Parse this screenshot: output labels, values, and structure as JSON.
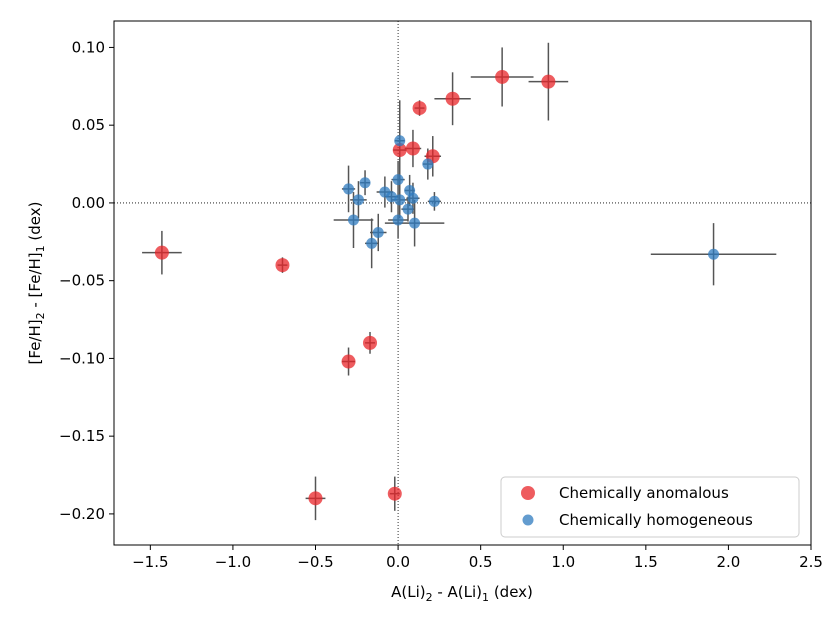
{
  "chart_data": {
    "type": "scatter",
    "xlabel_parts": [
      "A(Li)",
      "2",
      " - A(Li)",
      "1",
      " (dex)"
    ],
    "ylabel_parts": [
      "[Fe/H]",
      "2",
      " - [Fe/H]",
      "1",
      " (dex)"
    ],
    "xlim": [
      -1.72,
      2.5
    ],
    "ylim": [
      -0.22,
      0.117
    ],
    "xticks": [
      -1.5,
      -1.0,
      -0.5,
      0.0,
      0.5,
      1.0,
      1.5,
      2.0,
      2.5
    ],
    "xtick_labels": [
      "−1.5",
      "−1.0",
      "−0.5",
      "0.0",
      "0.5",
      "1.0",
      "1.5",
      "2.0",
      "2.5"
    ],
    "yticks": [
      0.1,
      0.05,
      0.0,
      -0.05,
      -0.1,
      -0.15,
      -0.2
    ],
    "ytick_labels": [
      "0.10",
      "0.05",
      "0.00",
      "−0.05",
      "−0.10",
      "−0.15",
      "−0.20"
    ],
    "reference_lines": {
      "x": 0,
      "y": 0
    },
    "legend": {
      "position": "bottom-right"
    },
    "series": [
      {
        "name": "Chemically anomalous",
        "color": "#e8262a",
        "points": [
          {
            "x": -1.43,
            "y": -0.032,
            "xerr": 0.12,
            "yerr": 0.014
          },
          {
            "x": -0.7,
            "y": -0.04,
            "xerr": 0.03,
            "yerr": 0.005
          },
          {
            "x": -0.3,
            "y": -0.102,
            "xerr": 0.04,
            "yerr": 0.009
          },
          {
            "x": -0.17,
            "y": -0.09,
            "xerr": 0.03,
            "yerr": 0.007
          },
          {
            "x": -0.5,
            "y": -0.19,
            "xerr": 0.06,
            "yerr": 0.014
          },
          {
            "x": -0.02,
            "y": -0.187,
            "xerr": 0.03,
            "yerr": 0.011
          },
          {
            "x": 0.13,
            "y": 0.061,
            "xerr": 0.03,
            "yerr": 0.005
          },
          {
            "x": 0.33,
            "y": 0.067,
            "xerr": 0.11,
            "yerr": 0.017
          },
          {
            "x": 0.63,
            "y": 0.081,
            "xerr": 0.19,
            "yerr": 0.019
          },
          {
            "x": 0.91,
            "y": 0.078,
            "xerr": 0.12,
            "yerr": 0.025
          },
          {
            "x": 0.01,
            "y": 0.034,
            "xerr": 0.04,
            "yerr": 0.032
          },
          {
            "x": 0.09,
            "y": 0.035,
            "xerr": 0.05,
            "yerr": 0.012
          },
          {
            "x": 0.21,
            "y": 0.03,
            "xerr": 0.05,
            "yerr": 0.013
          }
        ]
      },
      {
        "name": "Chemically homogeneous",
        "color": "#2f7bbf",
        "points": [
          {
            "x": 1.91,
            "y": -0.033,
            "xerr": 0.38,
            "yerr": 0.02
          },
          {
            "x": 0.01,
            "y": 0.04,
            "xerr": 0.03,
            "yerr": 0.01
          },
          {
            "x": 0.18,
            "y": 0.025,
            "xerr": 0.03,
            "yerr": 0.01
          },
          {
            "x": -0.3,
            "y": 0.009,
            "xerr": 0.04,
            "yerr": 0.015
          },
          {
            "x": -0.2,
            "y": 0.013,
            "xerr": 0.03,
            "yerr": 0.008
          },
          {
            "x": -0.24,
            "y": 0.002,
            "xerr": 0.05,
            "yerr": 0.012
          },
          {
            "x": -0.08,
            "y": 0.007,
            "xerr": 0.05,
            "yerr": 0.01
          },
          {
            "x": -0.04,
            "y": 0.004,
            "xerr": 0.04,
            "yerr": 0.01
          },
          {
            "x": 0.0,
            "y": 0.015,
            "xerr": 0.04,
            "yerr": 0.012
          },
          {
            "x": 0.07,
            "y": 0.008,
            "xerr": 0.03,
            "yerr": 0.01
          },
          {
            "x": 0.01,
            "y": 0.002,
            "xerr": 0.05,
            "yerr": 0.012
          },
          {
            "x": 0.09,
            "y": 0.003,
            "xerr": 0.04,
            "yerr": 0.01
          },
          {
            "x": 0.06,
            "y": -0.004,
            "xerr": 0.04,
            "yerr": 0.008
          },
          {
            "x": 0.22,
            "y": 0.001,
            "xerr": 0.04,
            "yerr": 0.006
          },
          {
            "x": -0.27,
            "y": -0.011,
            "xerr": 0.12,
            "yerr": 0.018
          },
          {
            "x": -0.12,
            "y": -0.019,
            "xerr": 0.05,
            "yerr": 0.012
          },
          {
            "x": -0.16,
            "y": -0.026,
            "xerr": 0.04,
            "yerr": 0.016
          },
          {
            "x": 0.0,
            "y": -0.011,
            "xerr": 0.06,
            "yerr": 0.012
          },
          {
            "x": 0.1,
            "y": -0.013,
            "xerr": 0.18,
            "yerr": 0.015
          }
        ]
      }
    ]
  }
}
